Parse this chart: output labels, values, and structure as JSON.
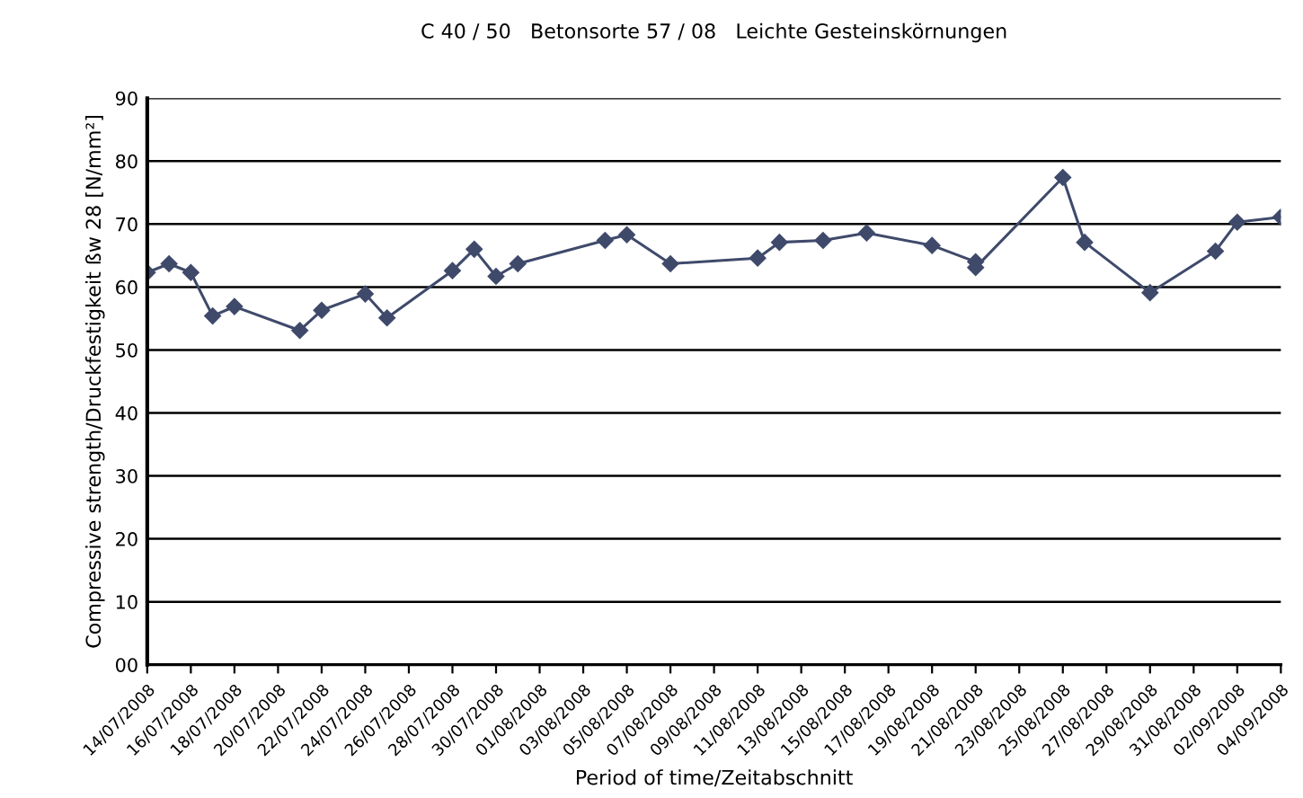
{
  "chart_data": {
    "type": "line",
    "title": "C 40 / 50   Betonsorte 57 / 08   Leichte Gesteinskörnungen",
    "xlabel": "Period of time/Zeitabschnitt",
    "ylabel": "Compressive strength/Druckfestigkeit ßw 28 [N/mm²]",
    "x": [
      "2008-07-14",
      "2008-07-15",
      "2008-07-16",
      "2008-07-17",
      "2008-07-18",
      "2008-07-21",
      "2008-07-22",
      "2008-07-24",
      "2008-07-25",
      "2008-07-28",
      "2008-07-29",
      "2008-07-30",
      "2008-07-31",
      "2008-08-04",
      "2008-08-05",
      "2008-08-07",
      "2008-08-11",
      "2008-08-12",
      "2008-08-14",
      "2008-08-16",
      "2008-08-19",
      "2008-08-21",
      "2008-08-21",
      "2008-08-25",
      "2008-08-26",
      "2008-08-29",
      "2008-09-01",
      "2008-09-02",
      "2008-09-04"
    ],
    "series": [
      {
        "color": "#3f4a6b",
        "values": [
          62.3,
          63.7,
          62.3,
          55.4,
          56.9,
          53.1,
          56.3,
          58.9,
          55.1,
          62.6,
          66.0,
          61.7,
          63.7,
          67.4,
          68.3,
          63.7,
          64.6,
          67.1,
          67.4,
          68.6,
          66.6,
          64.0,
          63.1,
          77.4,
          67.1,
          59.1,
          65.7,
          70.3,
          71.1
        ]
      }
    ],
    "xlim": [
      "2008-07-14",
      "2008-09-04"
    ],
    "xticks": [
      {
        "value": "2008-07-14",
        "label": "14/07/2008"
      },
      {
        "value": "2008-07-16",
        "label": "16/07/2008"
      },
      {
        "value": "2008-07-18",
        "label": "18/07/2008"
      },
      {
        "value": "2008-07-20",
        "label": "20/07/2008"
      },
      {
        "value": "2008-07-22",
        "label": "22/07/2008"
      },
      {
        "value": "2008-07-24",
        "label": "24/07/2008"
      },
      {
        "value": "2008-07-26",
        "label": "26/07/2008"
      },
      {
        "value": "2008-07-28",
        "label": "28/07/2008"
      },
      {
        "value": "2008-07-30",
        "label": "30/07/2008"
      },
      {
        "value": "2008-08-01",
        "label": "01/08/2008"
      },
      {
        "value": "2008-08-03",
        "label": "03/08/2008"
      },
      {
        "value": "2008-08-05",
        "label": "05/08/2008"
      },
      {
        "value": "2008-08-07",
        "label": "07/08/2008"
      },
      {
        "value": "2008-08-09",
        "label": "09/08/2008"
      },
      {
        "value": "2008-08-11",
        "label": "11/08/2008"
      },
      {
        "value": "2008-08-13",
        "label": "13/08/2008"
      },
      {
        "value": "2008-08-15",
        "label": "15/08/2008"
      },
      {
        "value": "2008-08-17",
        "label": "17/08/2008"
      },
      {
        "value": "2008-08-19",
        "label": "19/08/2008"
      },
      {
        "value": "2008-08-21",
        "label": "21/08/2008"
      },
      {
        "value": "2008-08-23",
        "label": "23/08/2008"
      },
      {
        "value": "2008-08-25",
        "label": "25/08/2008"
      },
      {
        "value": "2008-08-27",
        "label": "27/08/2008"
      },
      {
        "value": "2008-08-29",
        "label": "29/08/2008"
      },
      {
        "value": "2008-08-31",
        "label": "31/08/2008"
      },
      {
        "value": "2008-09-02",
        "label": "02/09/2008"
      },
      {
        "value": "2008-09-04",
        "label": "04/09/2008"
      }
    ],
    "ylim": [
      0,
      90
    ],
    "yticks": [
      {
        "value": 0,
        "label": "00"
      },
      10,
      20,
      30,
      40,
      50,
      60,
      70,
      80,
      90
    ],
    "grid": "y",
    "marker": "diamond",
    "line_style": "solid",
    "legend": false
  }
}
